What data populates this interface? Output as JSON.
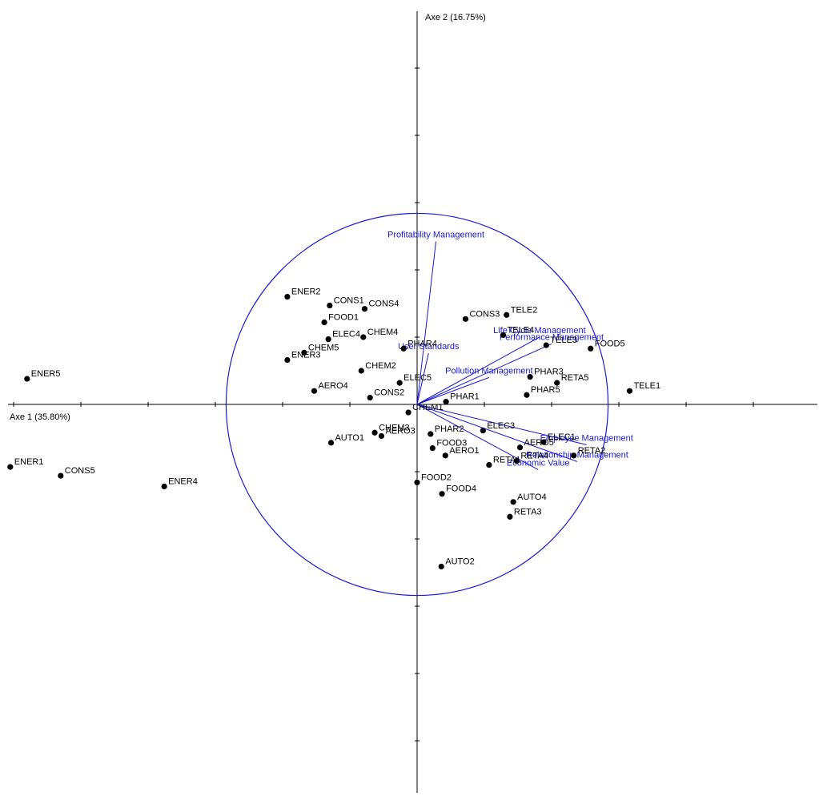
{
  "chart_data": {
    "type": "scatter",
    "title": "",
    "xlabel": "Axe 1 (35.80%)",
    "ylabel": "Axe 2 (16.75%)",
    "xlim": [
      -6.1,
      6.0
    ],
    "ylim": [
      -5.85,
      5.85
    ],
    "grid": false,
    "legend": "none",
    "correlation_circle_radius": 2.84,
    "colors": {
      "points": "#000000",
      "variables": "#1a1ad6"
    },
    "points": [
      {
        "label": "ENER5",
        "x": -5.8,
        "y": 0.38
      },
      {
        "label": "ENER1",
        "x": -6.05,
        "y": -0.93
      },
      {
        "label": "CONS5",
        "x": -5.3,
        "y": -1.06
      },
      {
        "label": "ENER4",
        "x": -3.76,
        "y": -1.22
      },
      {
        "label": "ENER2",
        "x": -1.93,
        "y": 1.6
      },
      {
        "label": "CONS1",
        "x": -1.3,
        "y": 1.47
      },
      {
        "label": "CONS4",
        "x": -0.78,
        "y": 1.42
      },
      {
        "label": "FOOD1",
        "x": -1.38,
        "y": 1.22
      },
      {
        "label": "ELEC4",
        "x": -1.32,
        "y": 0.97
      },
      {
        "label": "CHEM4",
        "x": -0.8,
        "y": 1.0
      },
      {
        "label": "CHEM5",
        "x": -1.68,
        "y": 0.77
      },
      {
        "label": "ENER3",
        "x": -1.93,
        "y": 0.66
      },
      {
        "label": "PHAR4",
        "x": -0.2,
        "y": 0.83
      },
      {
        "label": "CHEM2",
        "x": -0.83,
        "y": 0.5
      },
      {
        "label": "ELEC5",
        "x": -0.26,
        "y": 0.32
      },
      {
        "label": "AERO4",
        "x": -1.53,
        "y": 0.2
      },
      {
        "label": "CONS2",
        "x": -0.7,
        "y": 0.1
      },
      {
        "label": "CHEM1",
        "x": -0.13,
        "y": -0.12
      },
      {
        "label": "CHEM3",
        "x": -0.63,
        "y": -0.42
      },
      {
        "label": "AERO3",
        "x": -0.53,
        "y": -0.47
      },
      {
        "label": "AUTO1",
        "x": -1.28,
        "y": -0.57
      },
      {
        "label": "PHAR1",
        "x": 0.43,
        "y": 0.04
      },
      {
        "label": "PHAR2",
        "x": 0.2,
        "y": -0.44
      },
      {
        "label": "FOOD3",
        "x": 0.23,
        "y": -0.65
      },
      {
        "label": "AERO1",
        "x": 0.42,
        "y": -0.76
      },
      {
        "label": "FOOD2",
        "x": 0.0,
        "y": -1.16
      },
      {
        "label": "FOOD4",
        "x": 0.37,
        "y": -1.33
      },
      {
        "label": "AUTO2",
        "x": 0.36,
        "y": -2.41
      },
      {
        "label": "CONS3",
        "x": 0.72,
        "y": 1.27
      },
      {
        "label": "TELE2",
        "x": 1.33,
        "y": 1.33
      },
      {
        "label": "TELE4",
        "x": 1.28,
        "y": 1.03
      },
      {
        "label": "TELE3",
        "x": 1.92,
        "y": 0.88
      },
      {
        "label": "FOOD5",
        "x": 2.58,
        "y": 0.83
      },
      {
        "label": "PHAR3",
        "x": 1.68,
        "y": 0.41
      },
      {
        "label": "RETA5",
        "x": 2.08,
        "y": 0.32
      },
      {
        "label": "PHAR5",
        "x": 1.63,
        "y": 0.14
      },
      {
        "label": "TELE1",
        "x": 3.16,
        "y": 0.2
      },
      {
        "label": "ELEC3",
        "x": 0.98,
        "y": -0.39
      },
      {
        "label": "ELEC1",
        "x": 1.88,
        "y": -0.56
      },
      {
        "label": "AERO5",
        "x": 1.53,
        "y": -0.64
      },
      {
        "label": "RETA2",
        "x": 2.33,
        "y": -0.76
      },
      {
        "label": "RETA1",
        "x": 1.07,
        "y": -0.9
      },
      {
        "label": "RETA4",
        "x": 1.48,
        "y": -0.84
      },
      {
        "label": "AUTO4",
        "x": 1.43,
        "y": -1.45
      },
      {
        "label": "RETA3",
        "x": 1.38,
        "y": -1.67
      }
    ],
    "variables": [
      {
        "label": "Profitability Management",
        "x": 0.28,
        "y": 2.42
      },
      {
        "label": "Life Cycle Management",
        "x": 1.82,
        "y": 1.0
      },
      {
        "label": "Performance Management",
        "x": 2.0,
        "y": 0.9
      },
      {
        "label": "User Standards",
        "x": 0.17,
        "y": 0.76
      },
      {
        "label": "Pollution Management",
        "x": 1.07,
        "y": 0.4
      },
      {
        "label": "Employee Management",
        "x": 2.52,
        "y": -0.6
      },
      {
        "label": "Relationship Management",
        "x": 2.38,
        "y": -0.85
      },
      {
        "label": "Economic Value",
        "x": 1.8,
        "y": -0.97
      }
    ]
  }
}
